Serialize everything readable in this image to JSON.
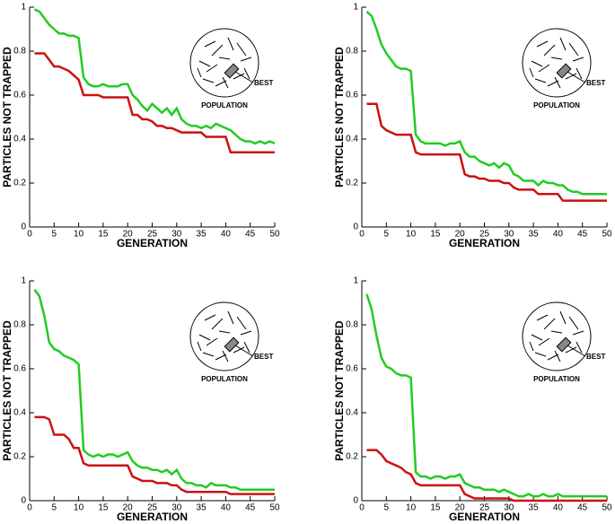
{
  "chart_data": [
    {
      "type": "line",
      "x_label": "GENERATION",
      "y_label": "PARTICLES NOT TRAPPED",
      "annotations": [
        "BEST",
        "POPULATION"
      ],
      "x": [
        1,
        2,
        3,
        4,
        5,
        6,
        7,
        8,
        9,
        10,
        11,
        12,
        13,
        14,
        15,
        16,
        17,
        18,
        19,
        20,
        21,
        22,
        23,
        24,
        25,
        26,
        27,
        28,
        29,
        30,
        31,
        32,
        33,
        34,
        35,
        36,
        37,
        38,
        39,
        40,
        41,
        42,
        43,
        44,
        45,
        46,
        47,
        48,
        49,
        50
      ],
      "xlim": [
        0,
        50
      ],
      "xticks": [
        0,
        5,
        10,
        15,
        20,
        25,
        30,
        35,
        40,
        45,
        50
      ],
      "ylim": [
        0,
        1
      ],
      "yticks": [
        0,
        0.2,
        0.4,
        0.6,
        0.8,
        1
      ],
      "series": [
        {
          "color": "#22cc22",
          "values": [
            0.99,
            0.98,
            0.95,
            0.92,
            0.9,
            0.88,
            0.88,
            0.87,
            0.87,
            0.86,
            0.68,
            0.65,
            0.64,
            0.64,
            0.65,
            0.64,
            0.64,
            0.64,
            0.65,
            0.65,
            0.6,
            0.58,
            0.55,
            0.53,
            0.56,
            0.54,
            0.52,
            0.54,
            0.51,
            0.54,
            0.49,
            0.47,
            0.46,
            0.46,
            0.45,
            0.46,
            0.45,
            0.47,
            0.46,
            0.45,
            0.44,
            0.42,
            0.4,
            0.39,
            0.39,
            0.38,
            0.39,
            0.38,
            0.39,
            0.38
          ]
        },
        {
          "color": "#cc1111",
          "values": [
            0.79,
            0.79,
            0.79,
            0.76,
            0.73,
            0.73,
            0.72,
            0.71,
            0.69,
            0.67,
            0.6,
            0.6,
            0.6,
            0.6,
            0.59,
            0.59,
            0.59,
            0.59,
            0.59,
            0.59,
            0.51,
            0.51,
            0.49,
            0.49,
            0.48,
            0.46,
            0.46,
            0.45,
            0.45,
            0.44,
            0.43,
            0.43,
            0.43,
            0.43,
            0.43,
            0.41,
            0.41,
            0.41,
            0.41,
            0.41,
            0.34,
            0.34,
            0.34,
            0.34,
            0.34,
            0.34,
            0.34,
            0.34,
            0.34,
            0.34
          ]
        }
      ]
    },
    {
      "type": "line",
      "x_label": "GENERATION",
      "y_label": "PARTICLES NOT TRAPPED",
      "annotations": [
        "BEST",
        "POPULATION"
      ],
      "x": [
        1,
        2,
        3,
        4,
        5,
        6,
        7,
        8,
        9,
        10,
        11,
        12,
        13,
        14,
        15,
        16,
        17,
        18,
        19,
        20,
        21,
        22,
        23,
        24,
        25,
        26,
        27,
        28,
        29,
        30,
        31,
        32,
        33,
        34,
        35,
        36,
        37,
        38,
        39,
        40,
        41,
        42,
        43,
        44,
        45,
        46,
        47,
        48,
        49,
        50
      ],
      "xlim": [
        0,
        50
      ],
      "xticks": [
        0,
        5,
        10,
        15,
        20,
        25,
        30,
        35,
        40,
        45,
        50
      ],
      "ylim": [
        0,
        1
      ],
      "yticks": [
        0,
        0.2,
        0.4,
        0.6,
        0.8,
        1
      ],
      "series": [
        {
          "color": "#22cc22",
          "values": [
            0.98,
            0.96,
            0.9,
            0.83,
            0.79,
            0.76,
            0.73,
            0.72,
            0.72,
            0.71,
            0.42,
            0.39,
            0.38,
            0.38,
            0.38,
            0.38,
            0.37,
            0.38,
            0.38,
            0.39,
            0.34,
            0.32,
            0.32,
            0.3,
            0.29,
            0.28,
            0.29,
            0.27,
            0.29,
            0.28,
            0.24,
            0.23,
            0.21,
            0.21,
            0.21,
            0.19,
            0.21,
            0.2,
            0.2,
            0.19,
            0.19,
            0.17,
            0.16,
            0.16,
            0.15,
            0.15,
            0.15,
            0.15,
            0.15,
            0.15
          ]
        },
        {
          "color": "#cc1111",
          "values": [
            0.56,
            0.56,
            0.56,
            0.46,
            0.44,
            0.43,
            0.42,
            0.42,
            0.42,
            0.42,
            0.34,
            0.33,
            0.33,
            0.33,
            0.33,
            0.33,
            0.33,
            0.33,
            0.33,
            0.33,
            0.24,
            0.23,
            0.23,
            0.22,
            0.22,
            0.21,
            0.21,
            0.21,
            0.2,
            0.2,
            0.18,
            0.17,
            0.17,
            0.17,
            0.17,
            0.15,
            0.15,
            0.15,
            0.15,
            0.15,
            0.12,
            0.12,
            0.12,
            0.12,
            0.12,
            0.12,
            0.12,
            0.12,
            0.12,
            0.12
          ]
        }
      ]
    },
    {
      "type": "line",
      "x_label": "GENERATION",
      "y_label": "PARTICLES NOT TRAPPED",
      "annotations": [
        "BEST",
        "POPULATION"
      ],
      "x": [
        1,
        2,
        3,
        4,
        5,
        6,
        7,
        8,
        9,
        10,
        11,
        12,
        13,
        14,
        15,
        16,
        17,
        18,
        19,
        20,
        21,
        22,
        23,
        24,
        25,
        26,
        27,
        28,
        29,
        30,
        31,
        32,
        33,
        34,
        35,
        36,
        37,
        38,
        39,
        40,
        41,
        42,
        43,
        44,
        45,
        46,
        47,
        48,
        49,
        50
      ],
      "xlim": [
        0,
        50
      ],
      "xticks": [
        0,
        5,
        10,
        15,
        20,
        25,
        30,
        35,
        40,
        45,
        50
      ],
      "ylim": [
        0,
        1
      ],
      "yticks": [
        0,
        0.2,
        0.4,
        0.6,
        0.8,
        1
      ],
      "series": [
        {
          "color": "#22cc22",
          "values": [
            0.96,
            0.93,
            0.84,
            0.72,
            0.69,
            0.68,
            0.66,
            0.65,
            0.64,
            0.62,
            0.23,
            0.21,
            0.2,
            0.21,
            0.2,
            0.21,
            0.21,
            0.2,
            0.21,
            0.22,
            0.18,
            0.16,
            0.15,
            0.15,
            0.14,
            0.14,
            0.13,
            0.14,
            0.12,
            0.14,
            0.1,
            0.08,
            0.08,
            0.07,
            0.07,
            0.06,
            0.08,
            0.07,
            0.07,
            0.07,
            0.06,
            0.06,
            0.05,
            0.05,
            0.05,
            0.05,
            0.05,
            0.05,
            0.05,
            0.05
          ]
        },
        {
          "color": "#cc1111",
          "values": [
            0.38,
            0.38,
            0.38,
            0.37,
            0.3,
            0.3,
            0.3,
            0.28,
            0.24,
            0.24,
            0.17,
            0.16,
            0.16,
            0.16,
            0.16,
            0.16,
            0.16,
            0.16,
            0.16,
            0.16,
            0.11,
            0.1,
            0.09,
            0.09,
            0.09,
            0.08,
            0.08,
            0.08,
            0.07,
            0.07,
            0.05,
            0.04,
            0.04,
            0.04,
            0.04,
            0.04,
            0.04,
            0.04,
            0.04,
            0.04,
            0.03,
            0.03,
            0.03,
            0.03,
            0.03,
            0.03,
            0.03,
            0.03,
            0.03,
            0.03
          ]
        }
      ]
    },
    {
      "type": "line",
      "x_label": "GENERATION",
      "y_label": "PARTICLES NOT TRAPPED",
      "annotations": [
        "BEST",
        "POPULATION"
      ],
      "x": [
        1,
        2,
        3,
        4,
        5,
        6,
        7,
        8,
        9,
        10,
        11,
        12,
        13,
        14,
        15,
        16,
        17,
        18,
        19,
        20,
        21,
        22,
        23,
        24,
        25,
        26,
        27,
        28,
        29,
        30,
        31,
        32,
        33,
        34,
        35,
        36,
        37,
        38,
        39,
        40,
        41,
        42,
        43,
        44,
        45,
        46,
        47,
        48,
        49,
        50
      ],
      "xlim": [
        0,
        50
      ],
      "xticks": [
        0,
        5,
        10,
        15,
        20,
        25,
        30,
        35,
        40,
        45,
        50
      ],
      "ylim": [
        0,
        1
      ],
      "yticks": [
        0,
        0.2,
        0.4,
        0.6,
        0.8,
        1
      ],
      "series": [
        {
          "color": "#22cc22",
          "values": [
            0.94,
            0.87,
            0.75,
            0.65,
            0.61,
            0.6,
            0.58,
            0.57,
            0.57,
            0.56,
            0.13,
            0.11,
            0.11,
            0.1,
            0.11,
            0.11,
            0.1,
            0.11,
            0.11,
            0.12,
            0.08,
            0.07,
            0.06,
            0.06,
            0.05,
            0.05,
            0.05,
            0.04,
            0.05,
            0.04,
            0.03,
            0.02,
            0.02,
            0.03,
            0.02,
            0.02,
            0.03,
            0.02,
            0.02,
            0.03,
            0.02,
            0.02,
            0.02,
            0.02,
            0.02,
            0.02,
            0.02,
            0.02,
            0.02,
            0.02
          ]
        },
        {
          "color": "#cc1111",
          "values": [
            0.23,
            0.23,
            0.23,
            0.21,
            0.18,
            0.17,
            0.16,
            0.15,
            0.13,
            0.12,
            0.08,
            0.07,
            0.07,
            0.07,
            0.07,
            0.07,
            0.07,
            0.07,
            0.07,
            0.07,
            0.03,
            0.02,
            0.01,
            0.01,
            0.01,
            0.01,
            0.01,
            0.01,
            0.01,
            0.01,
            0,
            0,
            0,
            0,
            0,
            0,
            0,
            0,
            0,
            0,
            0,
            0,
            0,
            0,
            0,
            0,
            0,
            0,
            0,
            0
          ]
        }
      ]
    }
  ]
}
